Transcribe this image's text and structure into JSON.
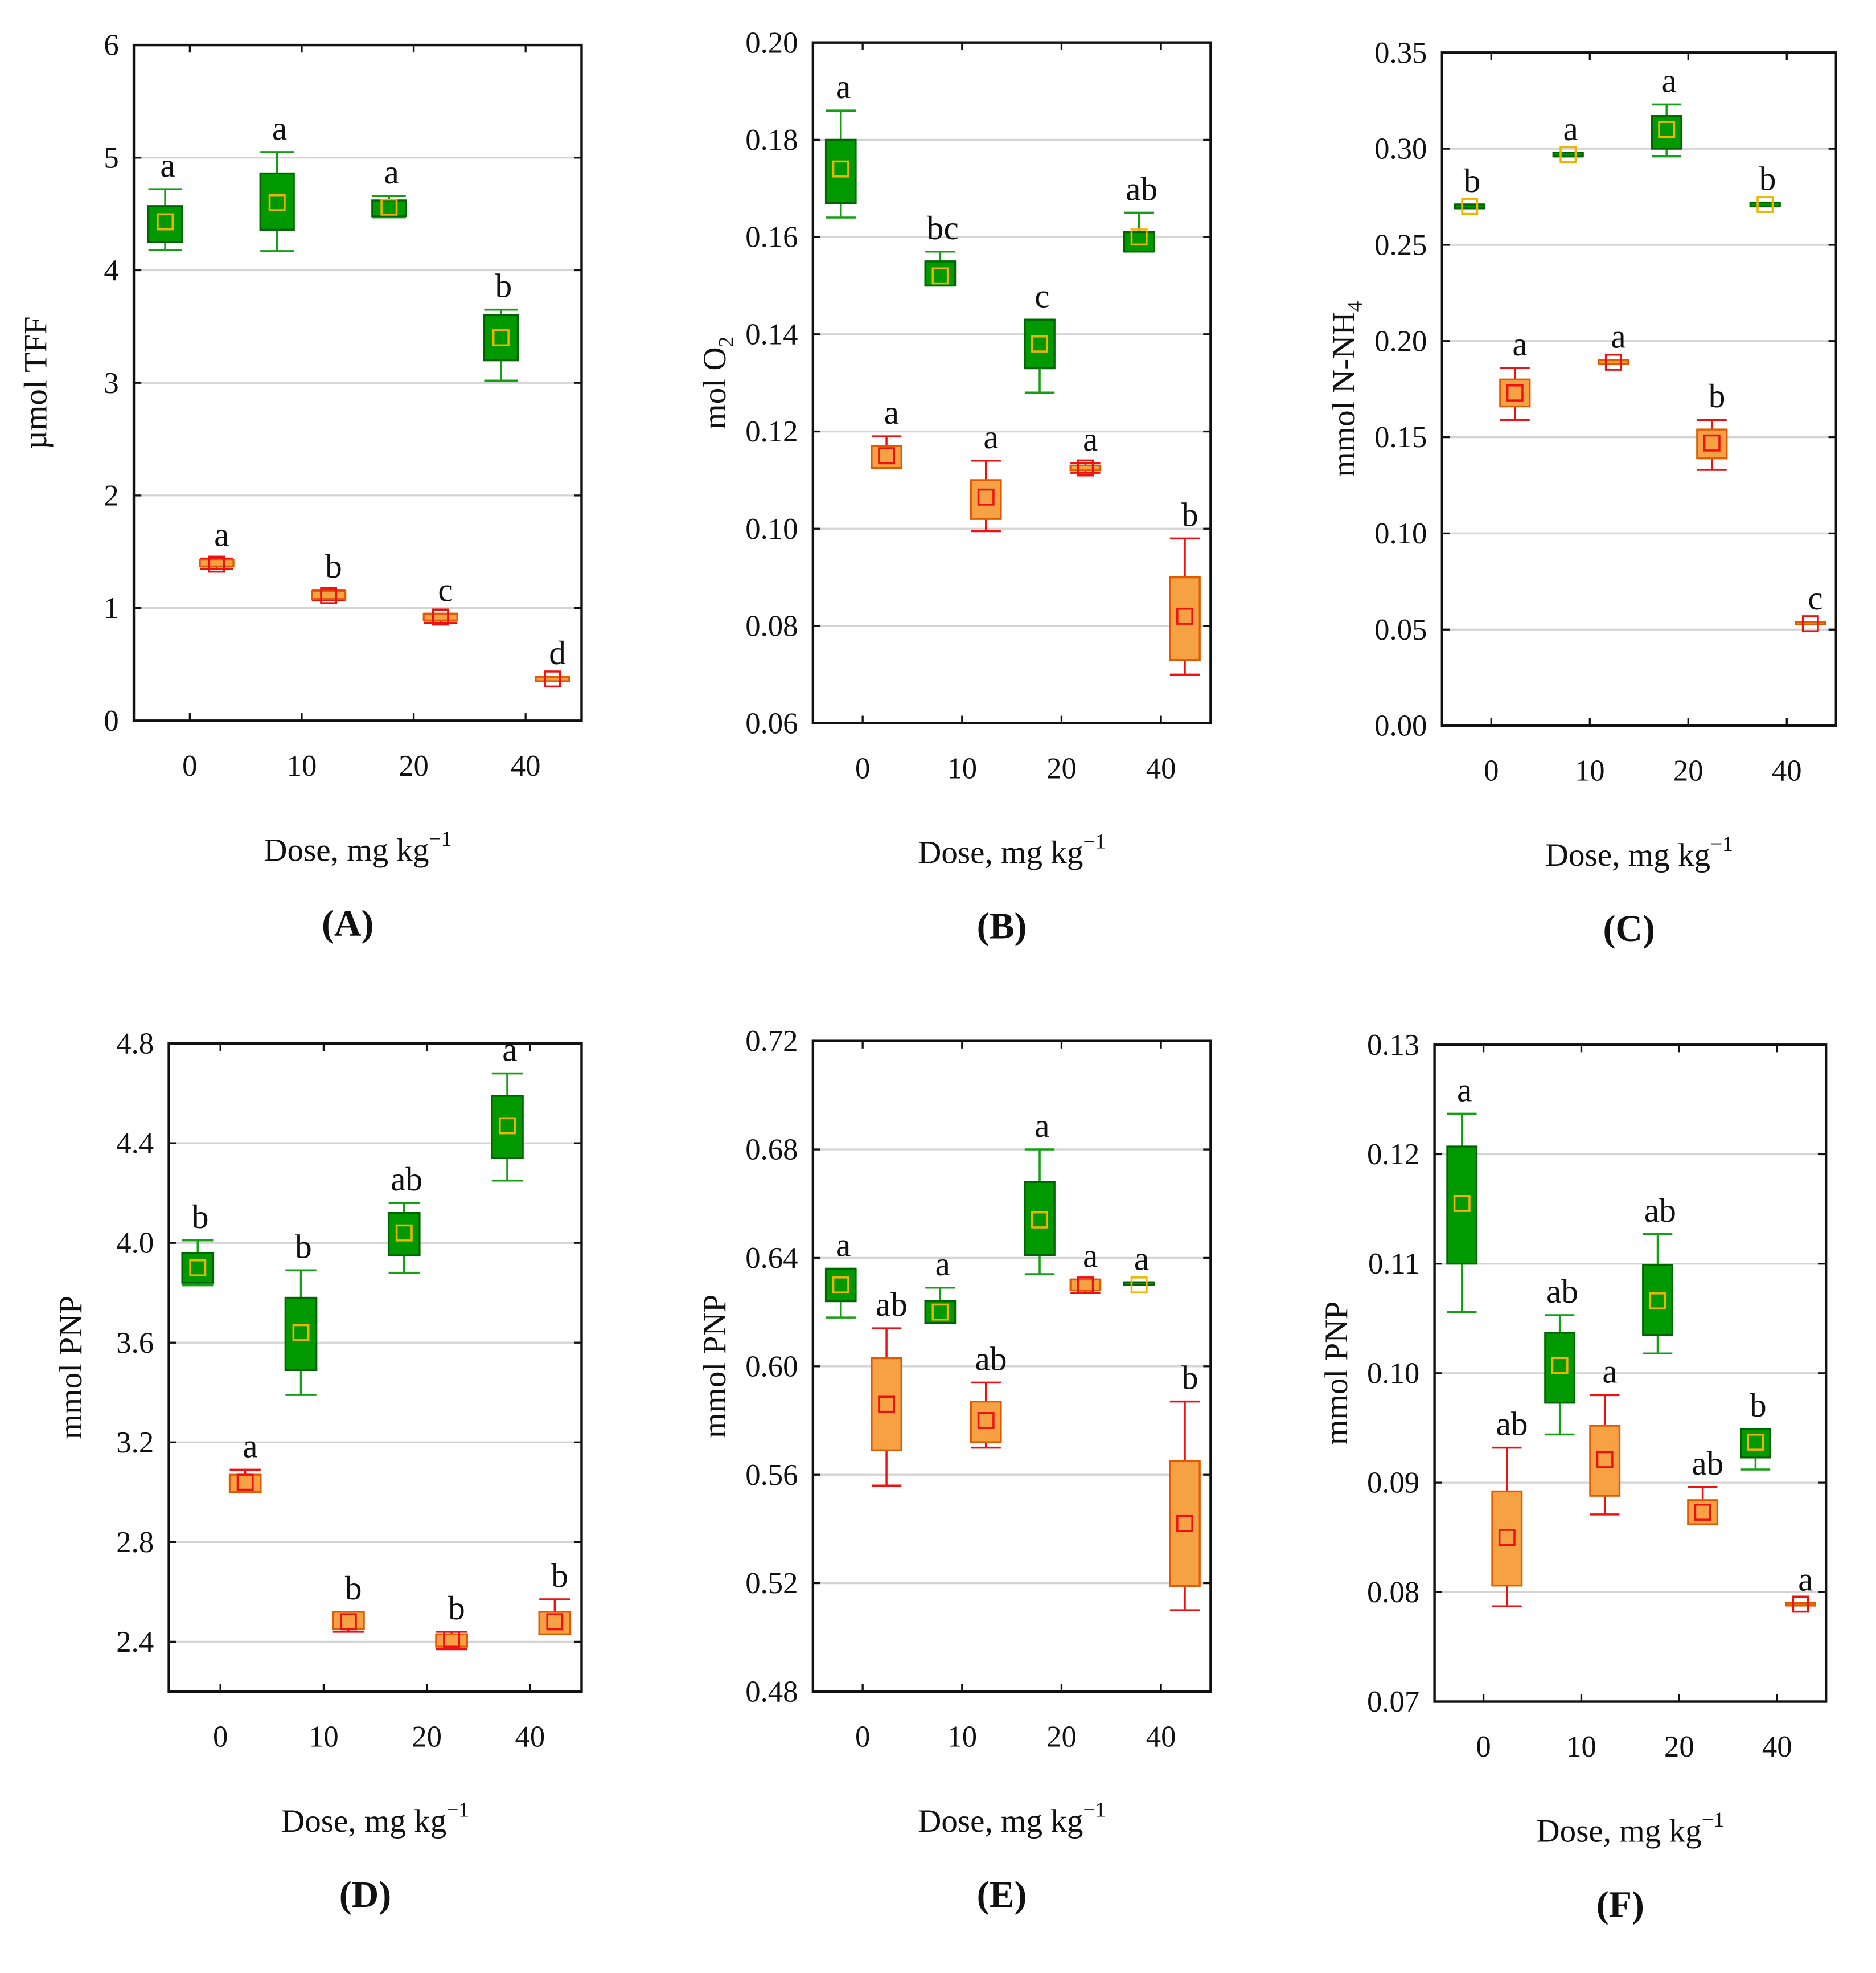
{
  "colors": {
    "green_fill": "#009a00",
    "green_edge": "#006400",
    "green_whisker": "#14a014",
    "green_mean": "#f0b400",
    "orange_fill": "#f7a145",
    "orange_edge": "#e05a00",
    "red_whisker": "#ee1111",
    "red_mean": "#ee1111",
    "grid": "#d4d4d4"
  },
  "chart_data": [
    {
      "type": "box",
      "panel": "(A)",
      "ylabel": "µmol TFF",
      "xlabel": "Dose, mg kg",
      "xlabel_sup": "−1",
      "ylim": [
        0,
        6
      ],
      "yticks": [
        "0",
        "1",
        "2",
        "3",
        "4",
        "5",
        "6"
      ],
      "categories": [
        "0",
        "10",
        "20",
        "40"
      ],
      "series": [
        {
          "name": "green",
          "boxes": [
            [
              4.25,
              4.57,
              4.18,
              4.72,
              4.43
            ],
            [
              4.36,
              4.86,
              4.17,
              5.05,
              4.6
            ],
            [
              4.48,
              4.62,
              4.47,
              4.66,
              4.56
            ],
            [
              3.2,
              3.6,
              3.02,
              3.65,
              3.4
            ]
          ],
          "letters": [
            "a",
            "a",
            "a",
            "b"
          ]
        },
        {
          "name": "red",
          "boxes": [
            [
              1.37,
              1.43,
              1.35,
              1.44,
              1.39
            ],
            [
              1.08,
              1.15,
              1.07,
              1.16,
              1.11
            ],
            [
              0.89,
              0.95,
              0.87,
              0.95,
              0.92
            ],
            [
              0.35,
              0.39,
              0.35,
              0.39,
              0.37
            ]
          ],
          "letters": [
            "a",
            "b",
            "c",
            "d"
          ]
        }
      ]
    },
    {
      "type": "box",
      "panel": "(B)",
      "ylabel": "mol O",
      "ylabel_sub": "2",
      "xlabel": "Dose, mg kg",
      "xlabel_sup": "−1",
      "ylim": [
        0.06,
        0.2
      ],
      "yticks": [
        "0.06",
        "0.08",
        "0.10",
        "0.12",
        "0.14",
        "0.16",
        "0.18",
        "0.20"
      ],
      "categories": [
        "0",
        "10",
        "20",
        "40"
      ],
      "series": [
        {
          "name": "green",
          "boxes": [
            [
              0.167,
              0.18,
              0.164,
              0.186,
              0.174
            ],
            [
              0.15,
              0.155,
              0.15,
              0.157,
              0.152
            ],
            [
              0.133,
              0.143,
              0.128,
              0.143,
              0.138
            ],
            [
              0.157,
              0.161,
              0.157,
              0.165,
              0.16
            ]
          ],
          "letters": [
            "a",
            "bc",
            "c",
            "ab"
          ]
        },
        {
          "name": "red",
          "boxes": [
            [
              0.1125,
              0.117,
              0.1125,
              0.119,
              0.115
            ],
            [
              0.102,
              0.11,
              0.0995,
              0.114,
              0.1065
            ],
            [
              0.112,
              0.113,
              0.1115,
              0.1135,
              0.1125
            ],
            [
              0.073,
              0.09,
              0.07,
              0.098,
              0.082
            ]
          ],
          "letters": [
            "a",
            "a",
            "a",
            "b"
          ]
        }
      ]
    },
    {
      "type": "box",
      "panel": "(C)",
      "ylabel": "mmol N-NH",
      "ylabel_sub": "4",
      "xlabel": "Dose, mg kg",
      "xlabel_sup": "−1",
      "ylim": [
        0,
        0.35
      ],
      "yticks": [
        "0.00",
        "0.05",
        "0.10",
        "0.15",
        "0.20",
        "0.25",
        "0.30",
        "0.35"
      ],
      "categories": [
        "0",
        "10",
        "20",
        "40"
      ],
      "series": [
        {
          "name": "green",
          "boxes": [
            [
              0.269,
              0.271,
              0.269,
              0.271,
              0.27
            ],
            [
              0.296,
              0.298,
              0.296,
              0.298,
              0.297
            ],
            [
              0.3,
              0.317,
              0.296,
              0.323,
              0.31
            ],
            [
              0.27,
              0.272,
              0.27,
              0.272,
              0.271
            ]
          ],
          "letters": [
            "b",
            "a",
            "a",
            "b"
          ]
        },
        {
          "name": "red",
          "boxes": [
            [
              0.166,
              0.18,
              0.159,
              0.186,
              0.173
            ],
            [
              0.188,
              0.19,
              0.188,
              0.19,
              0.189
            ],
            [
              0.139,
              0.154,
              0.133,
              0.159,
              0.147
            ],
            [
              0.053,
              0.054,
              0.053,
              0.054,
              0.053
            ]
          ],
          "letters": [
            "a",
            "a",
            "b",
            "c"
          ]
        }
      ]
    },
    {
      "type": "box",
      "panel": "(D)",
      "ylabel": "mmol PNP",
      "xlabel": "Dose, mg kg",
      "xlabel_sup": "−1",
      "ylim": [
        2.2,
        4.8
      ],
      "yticks": [
        "2.4",
        "2.8",
        "3.2",
        "3.6",
        "4.0",
        "4.4",
        "4.8"
      ],
      "ytick_values": [
        2.4,
        2.8,
        3.2,
        3.6,
        4.0,
        4.4,
        4.8
      ],
      "categories": [
        "0",
        "10",
        "20",
        "40"
      ],
      "series": [
        {
          "name": "green",
          "boxes": [
            [
              3.84,
              3.96,
              3.83,
              4.01,
              3.9
            ],
            [
              3.49,
              3.78,
              3.39,
              3.89,
              3.64
            ],
            [
              3.95,
              4.12,
              3.88,
              4.16,
              4.04
            ],
            [
              4.34,
              4.59,
              4.25,
              4.68,
              4.47
            ]
          ],
          "letters": [
            "b",
            "b",
            "ab",
            "a"
          ]
        },
        {
          "name": "red",
          "boxes": [
            [
              3.0,
              3.07,
              3.0,
              3.09,
              3.04
            ],
            [
              2.45,
              2.52,
              2.44,
              2.52,
              2.48
            ],
            [
              2.38,
              2.43,
              2.37,
              2.44,
              2.41
            ],
            [
              2.43,
              2.52,
              2.43,
              2.57,
              2.48
            ]
          ],
          "letters": [
            "a",
            "b",
            "b",
            "b"
          ]
        }
      ]
    },
    {
      "type": "box",
      "panel": "(E)",
      "ylabel": "mmol PNP",
      "xlabel": "Dose, mg kg",
      "xlabel_sup": "−1",
      "ylim": [
        0.48,
        0.72
      ],
      "yticks": [
        "0.48",
        "0.52",
        "0.56",
        "0.60",
        "0.64",
        "0.68",
        "0.72"
      ],
      "categories": [
        "0",
        "10",
        "20",
        "40"
      ],
      "series": [
        {
          "name": "green",
          "boxes": [
            [
              0.624,
              0.636,
              0.618,
              0.636,
              0.63
            ],
            [
              0.616,
              0.624,
              0.616,
              0.629,
              0.62
            ],
            [
              0.641,
              0.668,
              0.634,
              0.68,
              0.654
            ],
            [
              0.63,
              0.631,
              0.63,
              0.631,
              0.63
            ]
          ],
          "letters": [
            "a",
            "a",
            "a",
            "a"
          ]
        },
        {
          "name": "red",
          "boxes": [
            [
              0.569,
              0.603,
              0.556,
              0.614,
              0.586
            ],
            [
              0.572,
              0.587,
              0.57,
              0.594,
              0.58
            ],
            [
              0.628,
              0.632,
              0.627,
              0.632,
              0.63
            ],
            [
              0.519,
              0.565,
              0.51,
              0.587,
              0.542
            ]
          ],
          "letters": [
            "ab",
            "ab",
            "a",
            "b"
          ]
        }
      ]
    },
    {
      "type": "box",
      "panel": "(F)",
      "ylabel": "mmol PNP",
      "xlabel": "Dose, mg kg",
      "xlabel_sup": "−1",
      "ylim": [
        0.07,
        0.13
      ],
      "yticks": [
        "0.07",
        "0.08",
        "0.09",
        "0.10",
        "0.11",
        "0.12",
        "0.13"
      ],
      "categories": [
        "0",
        "10",
        "20",
        "40"
      ],
      "series": [
        {
          "name": "green",
          "boxes": [
            [
              0.11,
              0.1207,
              0.1056,
              0.1237,
              0.1155
            ],
            [
              0.0973,
              0.1037,
              0.0944,
              0.1053,
              0.1007
            ],
            [
              0.1035,
              0.1099,
              0.1018,
              0.1127,
              0.1066
            ],
            [
              0.0923,
              0.0949,
              0.0912,
              0.0949,
              0.0937
            ]
          ],
          "letters": [
            "a",
            "ab",
            "ab",
            "b"
          ]
        },
        {
          "name": "red",
          "boxes": [
            [
              0.0806,
              0.0892,
              0.0787,
              0.0932,
              0.085
            ],
            [
              0.0888,
              0.0952,
              0.0871,
              0.098,
              0.0921
            ],
            [
              0.0862,
              0.0884,
              0.0862,
              0.0896,
              0.0873
            ],
            [
              0.0788,
              0.079,
              0.0788,
              0.079,
              0.0789
            ]
          ],
          "letters": [
            "ab",
            "a",
            "ab",
            "a"
          ]
        }
      ]
    }
  ]
}
